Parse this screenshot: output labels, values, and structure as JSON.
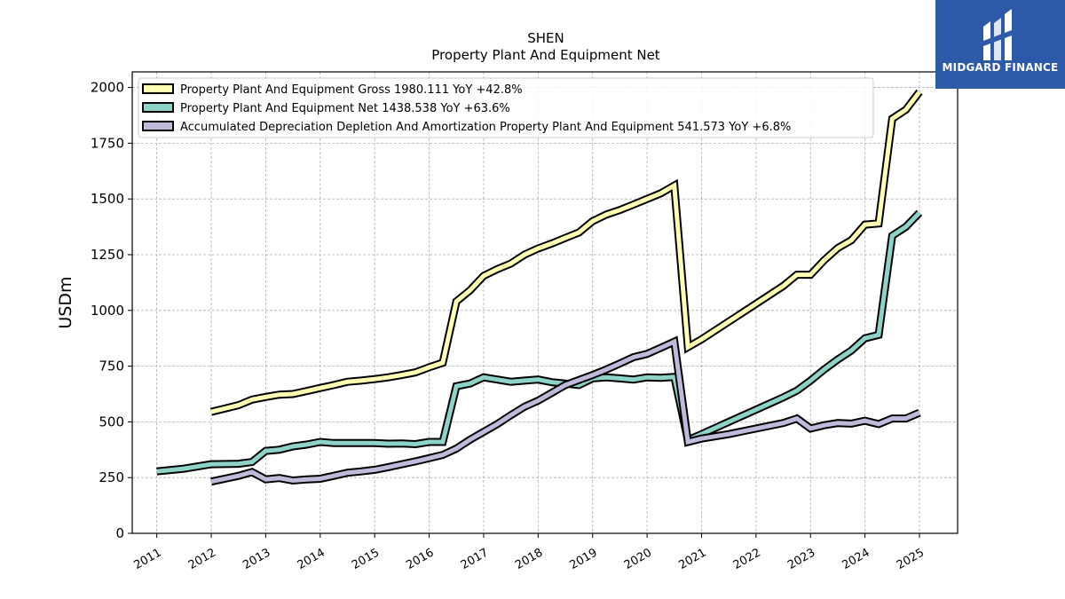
{
  "chart_data": {
    "type": "line",
    "title": "SHEN",
    "subtitle": "Property Plant And Equipment Net",
    "ylabel": "USDm",
    "xlabel": "",
    "ylim": [
      0,
      2070
    ],
    "xlim": [
      2010.55,
      2025.7
    ],
    "yticks": [
      0,
      250,
      500,
      750,
      1000,
      1250,
      1500,
      1750,
      2000
    ],
    "xticks": [
      "2011",
      "2012",
      "2013",
      "2014",
      "2015",
      "2016",
      "2017",
      "2018",
      "2019",
      "2020",
      "2021",
      "2022",
      "2023",
      "2024",
      "2025"
    ],
    "grid": true,
    "legend_position": "top-left",
    "series": [
      {
        "name": "Property Plant And Equipment Gross",
        "legend_label": "Property Plant And Equipment Gross  1980.111 YoY +42.8%",
        "color": "#ffffb3",
        "points": [
          [
            2012.0,
            545
          ],
          [
            2012.5,
            575
          ],
          [
            2012.75,
            600
          ],
          [
            2013.0,
            612
          ],
          [
            2013.25,
            622
          ],
          [
            2013.5,
            625
          ],
          [
            2013.75,
            638
          ],
          [
            2014.0,
            652
          ],
          [
            2014.25,
            665
          ],
          [
            2014.5,
            680
          ],
          [
            2014.75,
            685
          ],
          [
            2015.0,
            692
          ],
          [
            2015.25,
            700
          ],
          [
            2015.5,
            710
          ],
          [
            2015.75,
            722
          ],
          [
            2016.0,
            745
          ],
          [
            2016.25,
            765
          ],
          [
            2016.5,
            1040
          ],
          [
            2016.75,
            1090
          ],
          [
            2017.0,
            1155
          ],
          [
            2017.25,
            1185
          ],
          [
            2017.5,
            1210
          ],
          [
            2017.75,
            1250
          ],
          [
            2018.0,
            1278
          ],
          [
            2018.25,
            1300
          ],
          [
            2018.5,
            1325
          ],
          [
            2018.75,
            1350
          ],
          [
            2019.0,
            1400
          ],
          [
            2019.25,
            1430
          ],
          [
            2019.5,
            1450
          ],
          [
            2019.75,
            1475
          ],
          [
            2020.0,
            1500
          ],
          [
            2020.25,
            1525
          ],
          [
            2020.5,
            1560
          ],
          [
            2020.75,
            835
          ],
          [
            2021.0,
            870
          ],
          [
            2021.5,
            950
          ],
          [
            2022.0,
            1030
          ],
          [
            2022.5,
            1110
          ],
          [
            2022.75,
            1160
          ],
          [
            2023.0,
            1160
          ],
          [
            2023.25,
            1225
          ],
          [
            2023.5,
            1280
          ],
          [
            2023.75,
            1315
          ],
          [
            2024.0,
            1385
          ],
          [
            2024.25,
            1390
          ],
          [
            2024.5,
            1860
          ],
          [
            2024.75,
            1900
          ],
          [
            2025.0,
            1980
          ]
        ]
      },
      {
        "name": "Property Plant And Equipment Net",
        "legend_label": "Property Plant And Equipment Net  1438.538 YoY +63.6%",
        "color": "#8dd3c7",
        "points": [
          [
            2011.0,
            278
          ],
          [
            2011.5,
            290
          ],
          [
            2012.0,
            310
          ],
          [
            2012.5,
            312
          ],
          [
            2012.75,
            320
          ],
          [
            2013.0,
            370
          ],
          [
            2013.25,
            375
          ],
          [
            2013.5,
            390
          ],
          [
            2013.75,
            398
          ],
          [
            2014.0,
            410
          ],
          [
            2014.25,
            405
          ],
          [
            2014.5,
            405
          ],
          [
            2014.75,
            405
          ],
          [
            2015.0,
            405
          ],
          [
            2015.25,
            402
          ],
          [
            2015.5,
            403
          ],
          [
            2015.75,
            400
          ],
          [
            2016.0,
            410
          ],
          [
            2016.25,
            410
          ],
          [
            2016.5,
            660
          ],
          [
            2016.75,
            672
          ],
          [
            2017.0,
            700
          ],
          [
            2017.25,
            690
          ],
          [
            2017.5,
            680
          ],
          [
            2017.75,
            685
          ],
          [
            2018.0,
            690
          ],
          [
            2018.25,
            678
          ],
          [
            2018.5,
            672
          ],
          [
            2018.75,
            665
          ],
          [
            2019.0,
            695
          ],
          [
            2019.25,
            700
          ],
          [
            2019.5,
            695
          ],
          [
            2019.75,
            690
          ],
          [
            2020.0,
            700
          ],
          [
            2020.25,
            698
          ],
          [
            2020.5,
            702
          ],
          [
            2020.75,
            418
          ],
          [
            2021.0,
            445
          ],
          [
            2021.5,
            500
          ],
          [
            2022.0,
            555
          ],
          [
            2022.5,
            610
          ],
          [
            2022.75,
            640
          ],
          [
            2023.0,
            685
          ],
          [
            2023.25,
            735
          ],
          [
            2023.5,
            780
          ],
          [
            2023.75,
            820
          ],
          [
            2024.0,
            875
          ],
          [
            2024.25,
            890
          ],
          [
            2024.5,
            1335
          ],
          [
            2024.75,
            1375
          ],
          [
            2025.0,
            1438
          ]
        ]
      },
      {
        "name": "Accumulated Depreciation Depletion And Amortization Property Plant And Equipment",
        "legend_label": "Accumulated Depreciation Depletion And Amortization Property Plant And Equipment  541.573 YoY +6.8%",
        "color": "#bebada",
        "points": [
          [
            2012.0,
            232
          ],
          [
            2012.5,
            258
          ],
          [
            2012.75,
            275
          ],
          [
            2013.0,
            242
          ],
          [
            2013.25,
            248
          ],
          [
            2013.5,
            237
          ],
          [
            2013.75,
            242
          ],
          [
            2014.0,
            245
          ],
          [
            2014.25,
            258
          ],
          [
            2014.5,
            272
          ],
          [
            2014.75,
            278
          ],
          [
            2015.0,
            285
          ],
          [
            2015.25,
            297
          ],
          [
            2015.5,
            310
          ],
          [
            2015.75,
            323
          ],
          [
            2016.0,
            337
          ],
          [
            2016.25,
            352
          ],
          [
            2016.5,
            380
          ],
          [
            2016.75,
            420
          ],
          [
            2017.0,
            455
          ],
          [
            2017.25,
            490
          ],
          [
            2017.5,
            530
          ],
          [
            2017.75,
            568
          ],
          [
            2018.0,
            595
          ],
          [
            2018.25,
            630
          ],
          [
            2018.5,
            665
          ],
          [
            2018.75,
            688
          ],
          [
            2019.0,
            710
          ],
          [
            2019.25,
            735
          ],
          [
            2019.5,
            762
          ],
          [
            2019.75,
            790
          ],
          [
            2020.0,
            805
          ],
          [
            2020.25,
            832
          ],
          [
            2020.5,
            860
          ],
          [
            2020.75,
            410
          ],
          [
            2021.0,
            425
          ],
          [
            2021.5,
            445
          ],
          [
            2022.0,
            470
          ],
          [
            2022.5,
            495
          ],
          [
            2022.75,
            515
          ],
          [
            2023.0,
            470
          ],
          [
            2023.25,
            485
          ],
          [
            2023.5,
            495
          ],
          [
            2023.75,
            492
          ],
          [
            2024.0,
            505
          ],
          [
            2024.25,
            490
          ],
          [
            2024.5,
            515
          ],
          [
            2024.75,
            515
          ],
          [
            2025.0,
            541
          ]
        ]
      }
    ]
  },
  "logo": {
    "text": "MIDGARD FINANCE",
    "icon": "midgard-logo-icon",
    "background": "#2d5aa8"
  }
}
